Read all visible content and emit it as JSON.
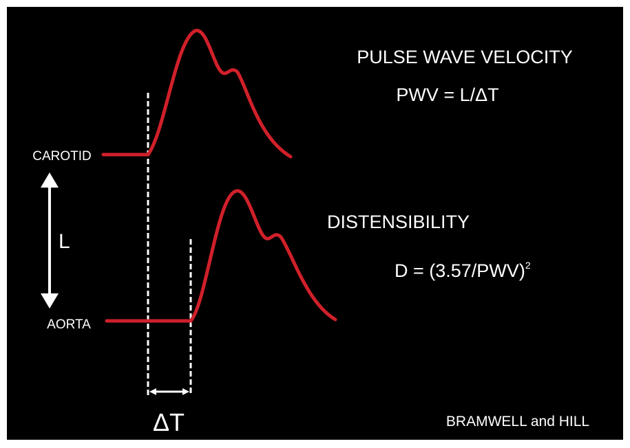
{
  "diagram": {
    "title_pwv": "PULSE WAVE VELOCITY",
    "formula_pwv": "PWV = L/ΔT",
    "label_carotid": "CAROTID",
    "label_length": "L",
    "label_aorta": "AORTA",
    "title_distensibility": "DISTENSIBILITY",
    "formula_distensibility": "D = (3.57/PWV)",
    "formula_distensibility_exponent": "2",
    "label_delta_t": "ΔT",
    "credit": "BRAMWELL and HILL"
  }
}
